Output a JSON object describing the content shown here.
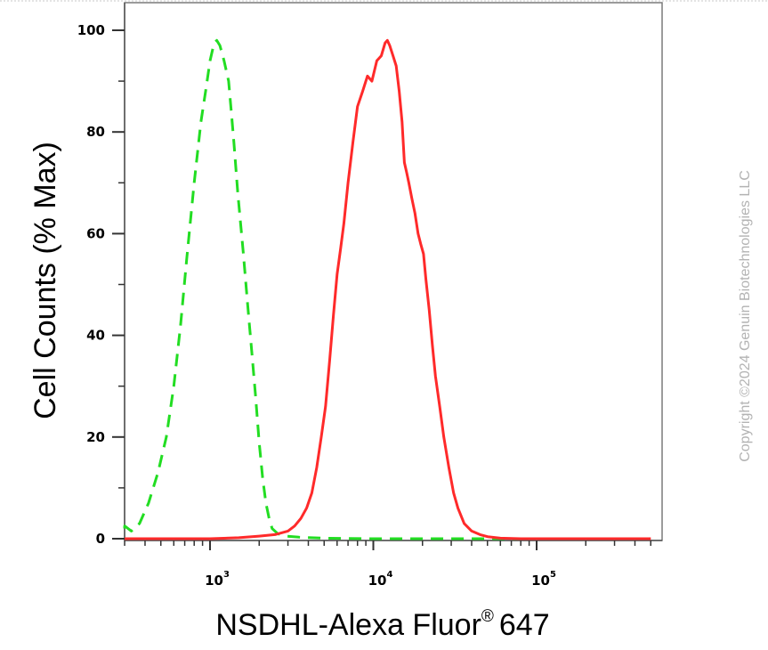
{
  "chart_data": {
    "type": "line",
    "xlabel": "NSDHL-Alexa Fluor",
    "xlabel_mark": "®",
    "xlabel_suffix": "647",
    "ylabel": "Cell Counts (% Max)",
    "x_scale": "log",
    "xlim": [
      270,
      500000
    ],
    "ylim": [
      0,
      105
    ],
    "x_tick_labels": [
      {
        "base": "10",
        "exp": "3"
      },
      {
        "base": "10",
        "exp": "4"
      },
      {
        "base": "10",
        "exp": "5"
      }
    ],
    "y_ticks": [
      0,
      20,
      40,
      60,
      80,
      100
    ],
    "grid": false,
    "legend": "none",
    "series": [
      {
        "color": "#22dd22",
        "style": "dashed",
        "points": [
          [
            280,
            2
          ],
          [
            300,
            2.5
          ],
          [
            330,
            1.5
          ],
          [
            370,
            3
          ],
          [
            420,
            7
          ],
          [
            480,
            13
          ],
          [
            540,
            20
          ],
          [
            600,
            30
          ],
          [
            660,
            42
          ],
          [
            720,
            55
          ],
          [
            800,
            70
          ],
          [
            880,
            82
          ],
          [
            950,
            89
          ],
          [
            1000,
            94
          ],
          [
            1060,
            97.5
          ],
          [
            1100,
            98
          ],
          [
            1150,
            97
          ],
          [
            1220,
            94
          ],
          [
            1300,
            90
          ],
          [
            1350,
            84
          ],
          [
            1400,
            78
          ],
          [
            1480,
            68
          ],
          [
            1600,
            56
          ],
          [
            1700,
            46
          ],
          [
            1800,
            37
          ],
          [
            1900,
            28
          ],
          [
            2000,
            19
          ],
          [
            2100,
            12
          ],
          [
            2200,
            7
          ],
          [
            2300,
            4
          ],
          [
            2400,
            2
          ],
          [
            2600,
            1
          ],
          [
            2900,
            0.5
          ],
          [
            3500,
            0.3
          ],
          [
            5000,
            0.1
          ],
          [
            10000,
            0
          ],
          [
            100000,
            0
          ],
          [
            500000,
            0
          ]
        ]
      },
      {
        "color": "#ff2a2a",
        "style": "solid",
        "points": [
          [
            270,
            0
          ],
          [
            1000,
            0
          ],
          [
            1500,
            0.2
          ],
          [
            2000,
            0.5
          ],
          [
            2500,
            0.8
          ],
          [
            3000,
            1.5
          ],
          [
            3300,
            2.5
          ],
          [
            3600,
            4
          ],
          [
            3900,
            6
          ],
          [
            4200,
            9
          ],
          [
            4500,
            14
          ],
          [
            4800,
            20
          ],
          [
            5100,
            26
          ],
          [
            5400,
            35
          ],
          [
            5700,
            44
          ],
          [
            6000,
            52
          ],
          [
            6300,
            57
          ],
          [
            6600,
            62
          ],
          [
            7000,
            70
          ],
          [
            7500,
            78
          ],
          [
            8000,
            85
          ],
          [
            8600,
            88
          ],
          [
            9200,
            91
          ],
          [
            9800,
            90
          ],
          [
            10500,
            94
          ],
          [
            11200,
            95
          ],
          [
            11800,
            97.5
          ],
          [
            12200,
            98
          ],
          [
            12600,
            97
          ],
          [
            13200,
            95
          ],
          [
            13800,
            93
          ],
          [
            14400,
            88
          ],
          [
            15000,
            82
          ],
          [
            15500,
            74
          ],
          [
            16000,
            72
          ],
          [
            16500,
            70
          ],
          [
            17200,
            67
          ],
          [
            18000,
            64
          ],
          [
            18800,
            60
          ],
          [
            19500,
            58
          ],
          [
            20300,
            56
          ],
          [
            21000,
            51
          ],
          [
            22000,
            45
          ],
          [
            23000,
            38
          ],
          [
            24000,
            32
          ],
          [
            25500,
            26
          ],
          [
            27000,
            20
          ],
          [
            29000,
            14
          ],
          [
            31000,
            9
          ],
          [
            33000,
            6
          ],
          [
            36000,
            3
          ],
          [
            40000,
            1.5
          ],
          [
            45000,
            0.8
          ],
          [
            50000,
            0.4
          ],
          [
            60000,
            0.1
          ],
          [
            80000,
            0
          ],
          [
            500000,
            0
          ]
        ]
      }
    ]
  },
  "copyright": "Copyright ©2024 Genuin Biotechnologies LLC"
}
